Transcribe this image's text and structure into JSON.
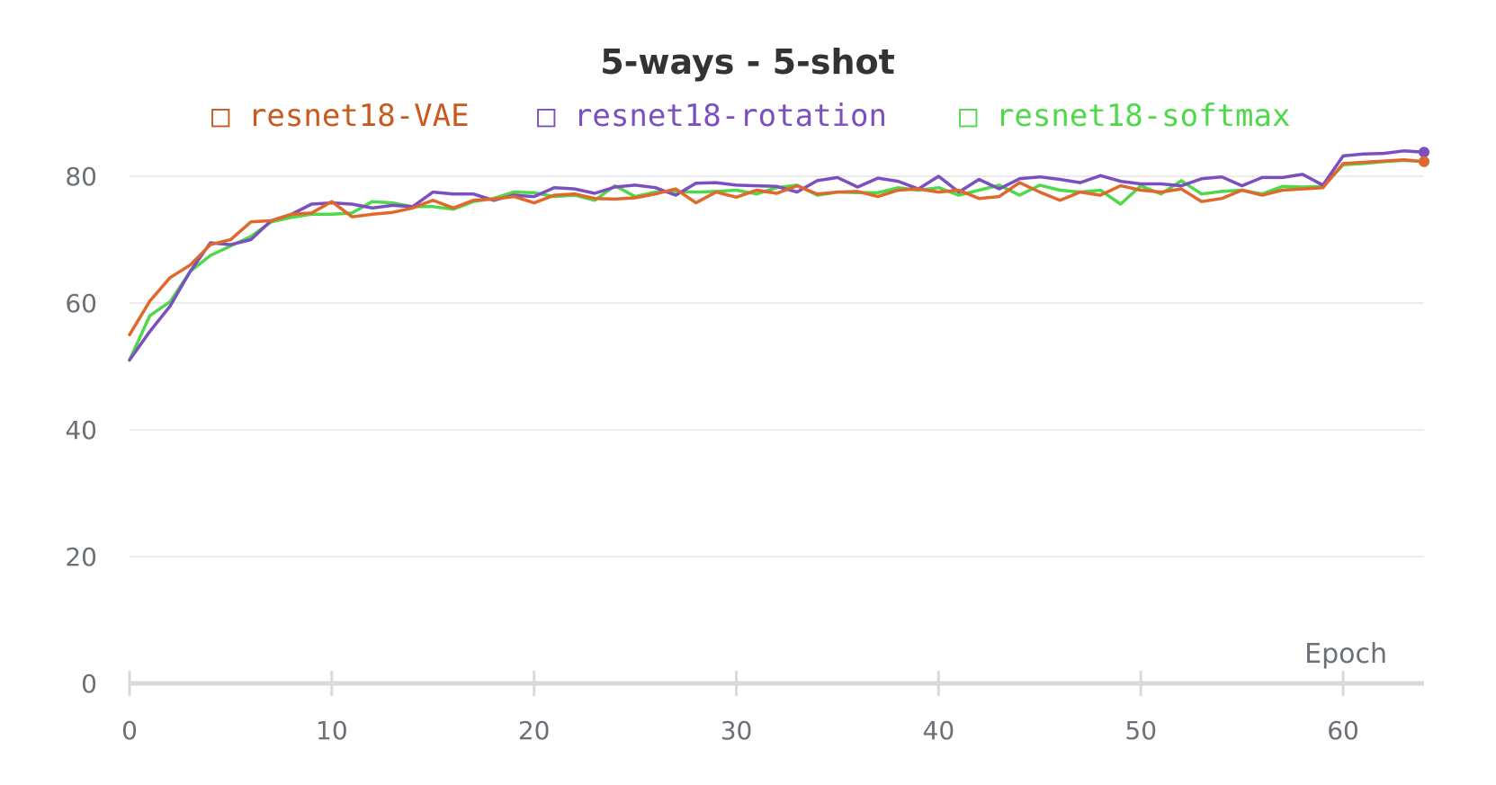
{
  "chart_data": {
    "type": "line",
    "title": "5-ways - 5-shot",
    "xlabel": "Epoch",
    "ylabel": "",
    "xlim": [
      0,
      64
    ],
    "ylim": [
      0,
      88
    ],
    "x_ticks": [
      0,
      10,
      20,
      30,
      40,
      50,
      60
    ],
    "y_ticks": [
      0,
      20,
      40,
      60,
      80
    ],
    "grid": "horizontal",
    "legend_position": "top",
    "legend_marker": "□",
    "colors": {
      "title": "#333333",
      "tick": "#6b6f76",
      "grid": "#e6e6e6",
      "axis": "#d9d9d9"
    },
    "series": [
      {
        "name": "resnet18-VAE",
        "color": "#e0682d",
        "legend_text_color": "#c85a1f",
        "values": [
          55,
          60.3,
          64,
          66,
          69.2,
          70,
          72.8,
          73,
          74,
          74.2,
          76,
          73.6,
          74,
          74.3,
          75,
          76.2,
          75,
          76.2,
          76.4,
          76.8,
          75.8,
          77,
          77.2,
          76.5,
          76.4,
          76.6,
          77.2,
          78,
          75.8,
          77.5,
          76.7,
          77.8,
          77.3,
          78.5,
          77.2,
          77.5,
          77.6,
          76.8,
          77.8,
          78,
          77.5,
          77.8,
          76.5,
          76.8,
          79,
          77.5,
          76.2,
          77.5,
          77,
          78.5,
          77.8,
          77.5,
          78,
          76,
          76.5,
          77.8,
          77,
          77.8,
          78,
          78.2,
          82,
          82.2,
          82.4,
          82.6,
          82.3
        ]
      },
      {
        "name": "resnet18-rotation",
        "color": "#7b4fbf",
        "legend_text_color": "#7b4fbf",
        "values": [
          51,
          55.5,
          59.5,
          65,
          69.5,
          69.2,
          70,
          73,
          74,
          75.6,
          75.8,
          75.6,
          75,
          75.4,
          75.2,
          77.5,
          77.2,
          77.2,
          76.2,
          77,
          76.8,
          78.2,
          78,
          77.3,
          78.3,
          78.6,
          78.2,
          77,
          78.9,
          79,
          78.6,
          78.5,
          78.4,
          77.5,
          79.3,
          79.8,
          78.3,
          79.7,
          79.2,
          78,
          80,
          77.5,
          79.5,
          78,
          79.6,
          79.9,
          79.5,
          79,
          80.1,
          79.2,
          78.8,
          78.8,
          78.5,
          79.6,
          79.9,
          78.5,
          79.8,
          79.8,
          80.3,
          78.6,
          83.2,
          83.5,
          83.6,
          84,
          83.8
        ]
      },
      {
        "name": "resnet18-softmax",
        "color": "#4fd84a",
        "legend_text_color": "#4fd84a",
        "values": [
          51,
          58,
          60.2,
          65,
          67.5,
          69,
          70.5,
          72.8,
          73.5,
          74,
          74,
          74.2,
          76,
          75.8,
          75.2,
          75.2,
          74.8,
          76,
          76.5,
          77.5,
          77.4,
          76.8,
          77,
          76.2,
          78.5,
          76.8,
          77.5,
          77.6,
          77.5,
          77.6,
          77.8,
          77.2,
          78.2,
          78.6,
          77,
          77.5,
          77.4,
          77.4,
          78.2,
          77.8,
          78.2,
          77,
          77.8,
          78.6,
          77,
          78.6,
          77.8,
          77.5,
          77.8,
          75.6,
          78.5,
          77.2,
          79.3,
          77.2,
          77.6,
          77.8,
          77.2,
          78.4,
          78.3,
          78.4,
          81.8,
          82,
          82.3,
          82.5,
          82.3
        ]
      }
    ]
  }
}
